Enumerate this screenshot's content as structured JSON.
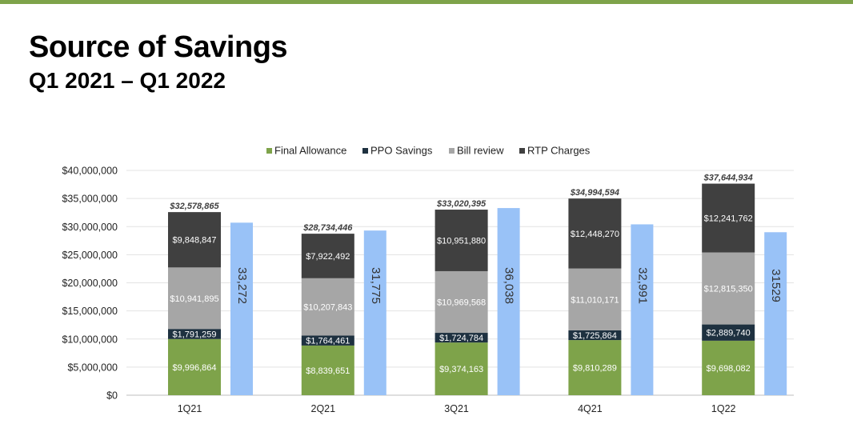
{
  "page": {
    "title": "Source of Savings",
    "subtitle": "Q1 2021 – Q1 2022"
  },
  "chart_data": {
    "type": "bar",
    "stacked": true,
    "categories": [
      "1Q21",
      "2Q21",
      "3Q21",
      "4Q21",
      "1Q22"
    ],
    "ylim": [
      0,
      40000000
    ],
    "yticks": [
      0,
      5000000,
      10000000,
      15000000,
      20000000,
      25000000,
      30000000,
      35000000,
      40000000
    ],
    "ytick_labels": [
      "$0",
      "$5,000,000",
      "$10,000,000",
      "$15,000,000",
      "$20,000,000",
      "$25,000,000",
      "$30,000,000",
      "$35,000,000",
      "$40,000,000"
    ],
    "grid": true,
    "legend_position": "top",
    "series": [
      {
        "name": "Final Allowance",
        "color": "#7ea34a",
        "values": [
          9996864,
          8839651,
          9374163,
          9810289,
          9698082
        ],
        "labels": [
          "$9,996,864",
          "$8,839,651",
          "$9,374,163",
          "$9,810,289",
          "$9,698,082"
        ]
      },
      {
        "name": "PPO Savings",
        "color": "#1e3140",
        "values": [
          1791259,
          1764461,
          1724784,
          1725864,
          2889740
        ],
        "labels": [
          "$1,791,259",
          "$1,764,461",
          "$1,724,784",
          "$1,725,864",
          "$2,889,740"
        ]
      },
      {
        "name": "Bill review",
        "color": "#a6a6a6",
        "values": [
          10941895,
          10207843,
          10969568,
          11010171,
          12815350
        ],
        "labels": [
          "$10,941,895",
          "$10,207,843",
          "$10,969,568",
          "$11,010,171",
          "$12,815,350"
        ]
      },
      {
        "name": "RTP Charges",
        "color": "#404040",
        "values": [
          9848847,
          7922492,
          10951880,
          12448270,
          12241762
        ],
        "labels": [
          "$9,848,847",
          "$7,922,492",
          "$10,951,880",
          "$12,448,270",
          "$12,241,762"
        ]
      }
    ],
    "totals": {
      "values": [
        32578865,
        28734446,
        33020395,
        34994594,
        37644934
      ],
      "labels": [
        "$32,578,865",
        "$28,734,446",
        "$33,020,395",
        "$34,994,594",
        "$37,644,934"
      ]
    },
    "secondary_bars": {
      "color": "#99c2f7",
      "values": [
        33272,
        31775,
        36038,
        32991,
        31529
      ],
      "labels": [
        "33,272",
        "31,775",
        "36,038",
        "32,991",
        "31529"
      ],
      "display_heights_in_y_units": [
        30700000,
        29300000,
        33300000,
        30400000,
        29000000
      ]
    }
  }
}
